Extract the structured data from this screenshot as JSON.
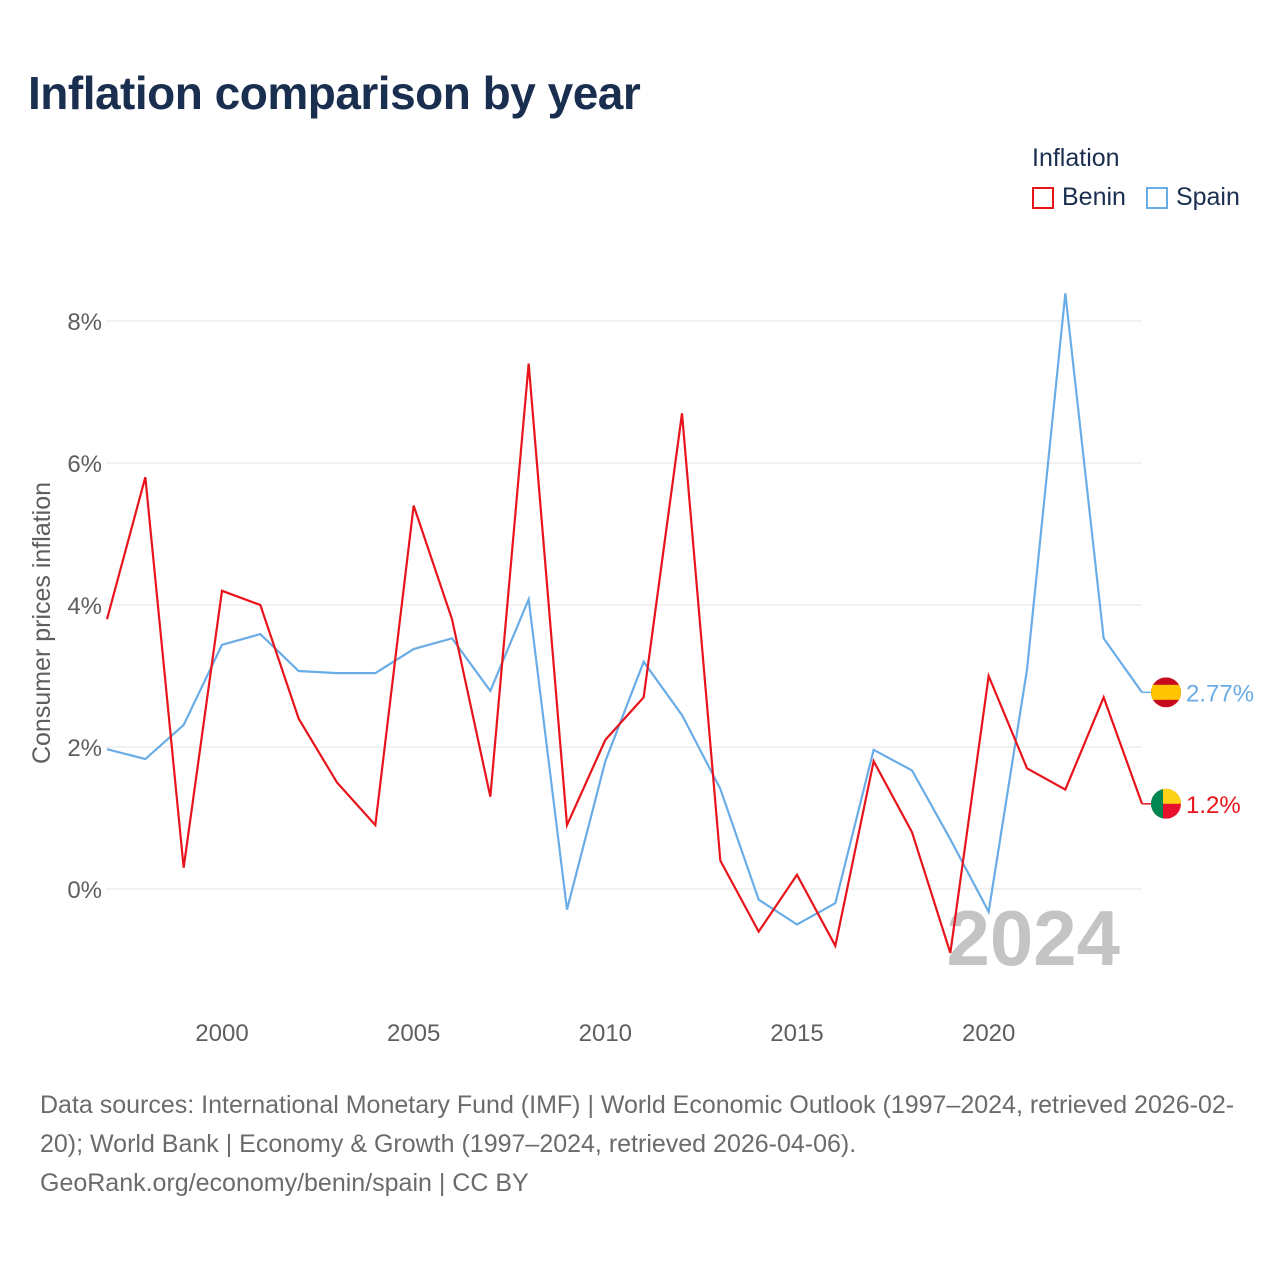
{
  "chart_data": {
    "type": "line",
    "title": "Inflation comparison by year",
    "ylabel": "Consumer prices inflation",
    "xlabel": "",
    "x": [
      1997,
      1998,
      1999,
      2000,
      2001,
      2002,
      2003,
      2004,
      2005,
      2006,
      2007,
      2008,
      2009,
      2010,
      2011,
      2012,
      2013,
      2014,
      2015,
      2016,
      2017,
      2018,
      2019,
      2020,
      2021,
      2022,
      2023,
      2024
    ],
    "xticks": [
      2000,
      2005,
      2010,
      2015,
      2020
    ],
    "xtick_labels": [
      "2000",
      "2005",
      "2010",
      "2015",
      "2020"
    ],
    "yticks": [
      0,
      2,
      4,
      6,
      8
    ],
    "ytick_labels": [
      "0%",
      "2%",
      "4%",
      "6%",
      "8%"
    ],
    "xlim": [
      1997,
      2024
    ],
    "ylim": [
      -1.7,
      8.6
    ],
    "legend_title": "Inflation",
    "legend_position": "top-right",
    "series": [
      {
        "name": "Benin",
        "color": "#e8141c",
        "values": [
          3.8,
          5.8,
          0.3,
          4.2,
          4.0,
          2.4,
          1.5,
          0.9,
          5.4,
          3.8,
          1.3,
          7.4,
          0.9,
          2.1,
          2.7,
          6.7,
          0.4,
          -0.6,
          0.2,
          -0.8,
          1.8,
          0.8,
          -0.9,
          3.0,
          1.7,
          1.4,
          2.7,
          1.2
        ],
        "end_label": "1.2%",
        "flag": "benin"
      },
      {
        "name": "Spain",
        "color": "#6aace6",
        "values": [
          1.97,
          1.83,
          2.31,
          3.44,
          3.59,
          3.07,
          3.04,
          3.04,
          3.38,
          3.53,
          2.79,
          4.08,
          -0.29,
          1.8,
          3.2,
          2.45,
          1.41,
          -0.15,
          -0.5,
          -0.2,
          1.96,
          1.67,
          0.7,
          -0.32,
          3.09,
          8.39,
          3.53,
          2.77
        ],
        "end_label": "2.77%",
        "flag": "spain"
      }
    ],
    "annotation": "2024",
    "grid": true
  },
  "footer": {
    "line1": "Data sources: International Monetary Fund (IMF) | World Economic Outlook (1997–2024, retrieved 2026-02-20); World Bank | Economy & Growth (1997–2024, retrieved 2026-04-06).",
    "line2": "GeoRank.org/economy/benin/spain | CC BY"
  }
}
